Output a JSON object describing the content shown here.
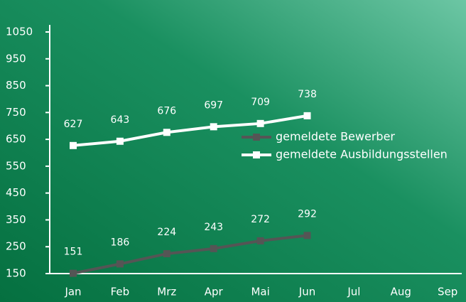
{
  "chart_data": {
    "type": "line",
    "categories": [
      "Jan",
      "Feb",
      "Mrz",
      "Apr",
      "Mai",
      "Jun",
      "Jul",
      "Aug",
      "Sep"
    ],
    "series": [
      {
        "name": "gemeldete Bewerber",
        "color": "#555555",
        "values": [
          151,
          186,
          224,
          243,
          272,
          292,
          null,
          null,
          null
        ]
      },
      {
        "name": "gemeldete Ausbildungsstellen",
        "color": "#ffffff",
        "values": [
          627,
          643,
          676,
          697,
          709,
          738,
          null,
          null,
          null
        ]
      }
    ],
    "ylim": [
      150,
      1050
    ],
    "yticks": [
      150,
      250,
      350,
      450,
      550,
      650,
      750,
      850,
      950,
      1050
    ]
  }
}
